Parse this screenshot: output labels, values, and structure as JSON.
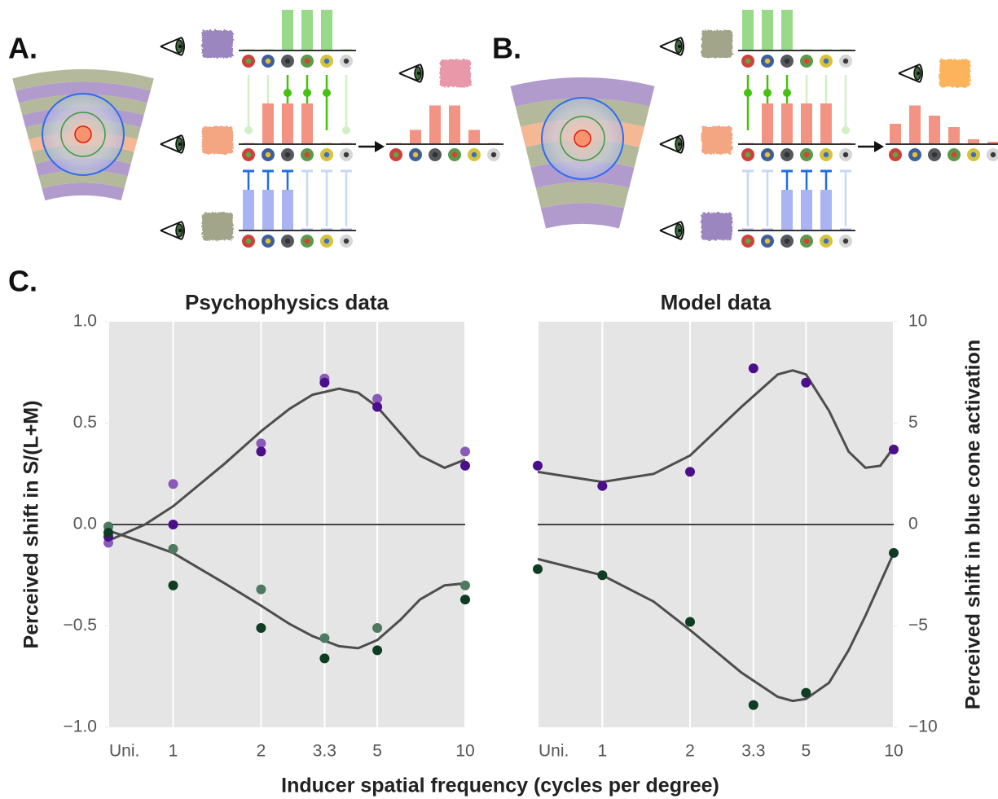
{
  "panel_labels": [
    "A.",
    "B.",
    "C."
  ],
  "diagrams": [
    {
      "rows": [
        {
          "bars": [
            0.03,
            0.03,
            1,
            1,
            1,
            0.03
          ]
        },
        {
          "bars": [
            0.03,
            1,
            1,
            1,
            0.03,
            0.03
          ]
        },
        {
          "bars": [
            1,
            1,
            1,
            0.05,
            0.05,
            0.05
          ]
        }
      ],
      "result": [
        0.03,
        0.35,
        0.95,
        0.95,
        0.35,
        0.03
      ]
    },
    {
      "rows": [
        {
          "bars": [
            1,
            1,
            1,
            0.03,
            0.03,
            0.03
          ]
        },
        {
          "bars": [
            0.03,
            1,
            1,
            1,
            1,
            0.03
          ]
        },
        {
          "bars": [
            0.05,
            0.05,
            1,
            1,
            1,
            0.05
          ]
        }
      ],
      "result": [
        0.5,
        0.95,
        0.7,
        0.42,
        0.12,
        0.06
      ]
    }
  ],
  "xlabel": "Inducer spatial frequency (cycles per degree)",
  "chart_data": [
    {
      "type": "scatter",
      "title": "Psychophysics data",
      "ylabel": "Perceived shift in S/(L+M)",
      "xscale": "log",
      "xlim": [
        0.6,
        10
      ],
      "xticks": [
        {
          "value": 0.6,
          "label": "Uni."
        },
        1,
        2,
        3.3,
        5,
        10
      ],
      "ylim": [
        -1,
        1
      ],
      "yticks": [
        {
          "value": -1,
          "label": "−1.0"
        },
        {
          "value": -0.5,
          "label": "−0.5"
        },
        {
          "value": 0,
          "label": "0.0"
        },
        0.5,
        {
          "value": 1,
          "label": "1.0"
        }
      ],
      "grid": "x",
      "hline": 0,
      "series": [
        {
          "kind": "line",
          "color": "#4d4d4d",
          "x": [
            0.6,
            0.8,
            1,
            1.5,
            2,
            2.5,
            3,
            3.7,
            4.3,
            5,
            6,
            7,
            8.5,
            10
          ],
          "values": [
            -0.08,
            0.0,
            0.09,
            0.3,
            0.46,
            0.57,
            0.64,
            0.67,
            0.65,
            0.58,
            0.45,
            0.34,
            0.28,
            0.32
          ]
        },
        {
          "kind": "line",
          "color": "#4d4d4d",
          "x": [
            0.6,
            0.8,
            1,
            1.5,
            2,
            2.5,
            3,
            3.7,
            4.3,
            5,
            6,
            7,
            8.5,
            10
          ],
          "values": [
            -0.03,
            -0.09,
            -0.14,
            -0.29,
            -0.4,
            -0.49,
            -0.55,
            -0.6,
            -0.61,
            -0.57,
            -0.47,
            -0.37,
            -0.3,
            -0.29
          ]
        },
        {
          "kind": "points",
          "color": "#8a5ab8",
          "x": [
            0.6,
            1,
            2,
            3.3,
            5,
            10
          ],
          "values": [
            -0.09,
            0.2,
            0.4,
            0.72,
            0.62,
            0.36
          ]
        },
        {
          "kind": "points",
          "color": "#4b0f8a",
          "x": [
            0.6,
            1,
            2,
            3.3,
            5,
            10
          ],
          "values": [
            -0.06,
            0.0,
            0.36,
            0.7,
            0.58,
            0.29
          ]
        },
        {
          "kind": "points",
          "color": "#4f7a62",
          "x": [
            0.6,
            1,
            2,
            3.3,
            5,
            10
          ],
          "values": [
            -0.01,
            -0.12,
            -0.32,
            -0.56,
            -0.51,
            -0.3
          ]
        },
        {
          "kind": "points",
          "color": "#0e3d24",
          "x": [
            0.6,
            1,
            2,
            3.3,
            5,
            10
          ],
          "values": [
            -0.04,
            -0.3,
            -0.51,
            -0.66,
            -0.62,
            -0.37
          ]
        }
      ]
    },
    {
      "type": "scatter",
      "title": "Model data",
      "y2label": "Perceived shift in blue cone activation",
      "xscale": "log",
      "xlim": [
        0.6,
        10
      ],
      "xticks": [
        {
          "value": 0.6,
          "label": "Uni."
        },
        1,
        2,
        3.3,
        5,
        10
      ],
      "y2lim": [
        -10,
        10
      ],
      "y2ticks": [
        {
          "value": -10,
          "label": "−10"
        },
        {
          "value": -5,
          "label": "−5"
        },
        0,
        5,
        10
      ],
      "grid": "x",
      "hline": 0,
      "series": [
        {
          "kind": "line",
          "axis": "y2",
          "color": "#4d4d4d",
          "x": [
            0.6,
            1,
            1.5,
            2,
            3,
            4,
            4.5,
            5,
            6,
            7,
            8,
            9,
            10
          ],
          "values": [
            2.6,
            2.1,
            2.5,
            3.4,
            5.8,
            7.4,
            7.6,
            7.4,
            5.6,
            3.6,
            2.8,
            2.9,
            3.8
          ]
        },
        {
          "kind": "line",
          "axis": "y2",
          "color": "#4d4d4d",
          "x": [
            0.6,
            1,
            1.5,
            2,
            3,
            4,
            4.5,
            5,
            6,
            7,
            8,
            10
          ],
          "values": [
            -1.7,
            -2.5,
            -3.8,
            -5.2,
            -7.3,
            -8.5,
            -8.7,
            -8.6,
            -7.8,
            -6.2,
            -4.5,
            -1.4
          ]
        },
        {
          "kind": "points",
          "axis": "y2",
          "color": "#4b0f8a",
          "x": [
            0.6,
            1,
            2,
            3.3,
            5,
            10
          ],
          "values": [
            2.9,
            1.9,
            2.6,
            7.7,
            7.0,
            3.7
          ]
        },
        {
          "kind": "points",
          "axis": "y2",
          "color": "#0e3d24",
          "x": [
            0.6,
            1,
            2,
            3.3,
            5,
            10
          ],
          "values": [
            -2.2,
            -2.5,
            -4.8,
            -8.9,
            -8.3,
            -1.4
          ]
        }
      ]
    }
  ]
}
